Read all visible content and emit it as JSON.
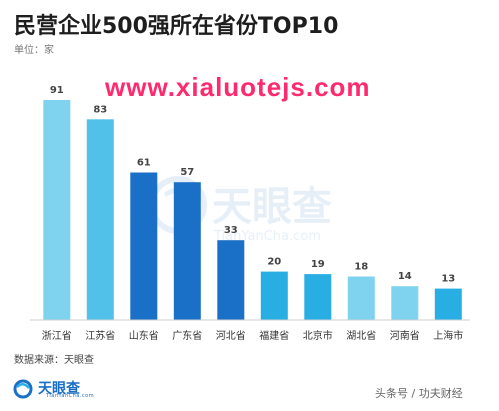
{
  "header": {
    "title": "民营企业500强所在省份TOP10",
    "unit": "单位：家"
  },
  "watermark": {
    "url_text": "www.xialuotejs.com",
    "logo_text": "天眼查",
    "logo_sub": "TianYanCha.com"
  },
  "footer": {
    "source": "数据来源：天眼查",
    "brand_name": "天眼查",
    "brand_sub": "TianYanCha.com",
    "credit": "头条号 / 功夫财经"
  },
  "colors": {
    "bar_light": "#7fd3ee",
    "bar_mid": "#29aee3",
    "bar_dark": "#1a6fc6",
    "url_watermark": "#ff2a6d"
  },
  "chart_data": {
    "type": "bar",
    "title": "民营企业500强所在省份TOP10",
    "ylabel": "单位：家",
    "categories": [
      "浙江省",
      "江苏省",
      "山东省",
      "广东省",
      "河北省",
      "福建省",
      "北京市",
      "湖北省",
      "河南省",
      "上海市"
    ],
    "values": [
      91,
      83,
      61,
      57,
      33,
      20,
      19,
      18,
      14,
      13
    ],
    "bar_colors": [
      "#7fd3ee",
      "#52c1ea",
      "#1a6fc6",
      "#1a6fc6",
      "#1a6fc6",
      "#29aee3",
      "#29aee3",
      "#7fd3ee",
      "#7fd3ee",
      "#29aee3"
    ],
    "ylim": [
      0,
      100
    ],
    "grid": false,
    "legend": "none"
  }
}
